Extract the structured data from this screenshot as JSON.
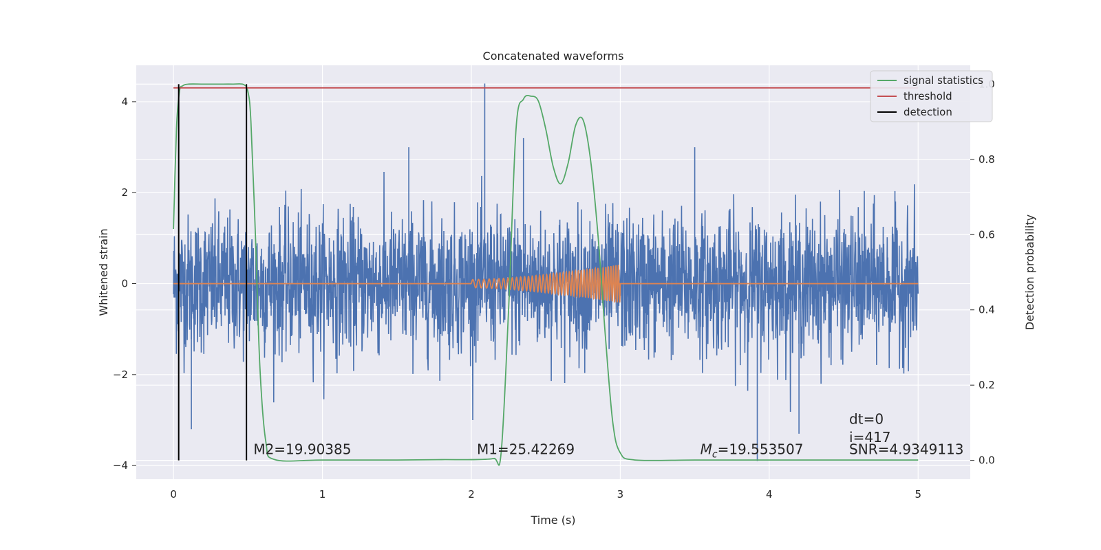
{
  "chart_data": {
    "type": "line",
    "title": "Concatenated waveforms",
    "xlabel": "Time (s)",
    "ylabel": "Whitened strain",
    "ylabel_right": "Detection probability",
    "xlim": [
      -0.25,
      5.35
    ],
    "ylim": [
      -4.3,
      4.8
    ],
    "ylim_right": [
      -0.05,
      1.05
    ],
    "xticks": [
      0,
      1,
      2,
      3,
      4,
      5
    ],
    "xtick_labels": [
      "0",
      "1",
      "2",
      "3",
      "4",
      "5"
    ],
    "yticks": [
      -4,
      -2,
      0,
      2,
      4
    ],
    "ytick_labels": [
      "−4",
      "−2",
      "0",
      "2",
      "4"
    ],
    "yticks_right": [
      0.0,
      0.2,
      0.4,
      0.6,
      0.8,
      1.0
    ],
    "ytick_right_labels": [
      "0.0",
      "0.2",
      "0.4",
      "0.6",
      "0.8",
      "1.0"
    ],
    "grid": true,
    "legend_position": "upper-right",
    "legend": [
      {
        "label": "signal statistics",
        "color": "#55a868"
      },
      {
        "label": "threshold",
        "color": "#c44e52"
      },
      {
        "label": "detection",
        "color": "#000000"
      }
    ],
    "series": [
      {
        "name": "",
        "color": "#4c72b0",
        "description_type": "whitened-noise",
        "x_range": [
          0,
          5
        ],
        "typical_std": 0.75,
        "notable_peaks": [
          [
            2.09,
            4.4
          ],
          [
            1.58,
            3.0
          ],
          [
            3.5,
            3.0
          ],
          [
            2.35,
            3.2
          ],
          [
            3.92,
            -3.9
          ],
          [
            4.2,
            -3.3
          ],
          [
            0.12,
            -3.2
          ]
        ]
      },
      {
        "name": "",
        "color": "#dd8452",
        "description_type": "chirp",
        "x_range": [
          0,
          5
        ],
        "chirp_start": 2.0,
        "chirp_end": 3.0,
        "amplitude_start": 0.09,
        "amplitude_end": 0.42
      },
      {
        "name": "signal statistics",
        "color": "#55a868",
        "axis": "right",
        "x": [
          0,
          0.02,
          0.04,
          0.06,
          0.1,
          0.2,
          0.3,
          0.4,
          0.47,
          0.5,
          0.52,
          0.55,
          0.58,
          0.62,
          0.68,
          1.0,
          1.5,
          1.8,
          2.0,
          2.15,
          2.2,
          2.25,
          2.3,
          2.35,
          2.4,
          2.45,
          2.5,
          2.55,
          2.6,
          2.65,
          2.7,
          2.75,
          2.8,
          2.85,
          2.9,
          2.95,
          3.0,
          3.1,
          3.5,
          4.0,
          4.5,
          5.0
        ],
        "y": [
          0.615,
          0.88,
          0.98,
          0.995,
          1.0,
          1.0,
          1.0,
          1.0,
          0.999,
          0.98,
          0.9,
          0.6,
          0.25,
          0.05,
          0.002,
          0.001,
          0.001,
          0.002,
          0.002,
          0.005,
          0.02,
          0.4,
          0.88,
          0.96,
          0.968,
          0.955,
          0.88,
          0.78,
          0.735,
          0.79,
          0.89,
          0.905,
          0.8,
          0.6,
          0.33,
          0.1,
          0.02,
          0.001,
          0.001,
          0.001,
          0.001,
          0.001
        ]
      },
      {
        "name": "threshold",
        "color": "#c44e52",
        "axis": "right",
        "x": [
          0,
          5
        ],
        "y": [
          0.99,
          0.99
        ]
      },
      {
        "name": "detection",
        "color": "#000000",
        "axis": "right",
        "type": "vlines",
        "x": [
          0.035,
          0.49
        ],
        "y_range": [
          0.0,
          1.0
        ]
      }
    ],
    "annotations": [
      {
        "text": "M2=19.90385",
        "x": 0.5,
        "y": -3.75
      },
      {
        "text": "M1=25.42269",
        "x": 2.0,
        "y": -3.75
      },
      {
        "text": "=19.553507",
        "math_prefix": "M",
        "math_subscript": "c",
        "x": 3.5,
        "y": -3.75
      },
      {
        "text": "SNR=4.9349113",
        "x": 4.5,
        "y": -3.75
      },
      {
        "text": "dt=0",
        "x": 4.5,
        "y": -3.08
      },
      {
        "text": "i=417",
        "x": 4.5,
        "y": -3.48
      }
    ],
    "colors": {
      "plot_bg": "#eaeaf2",
      "grid": "#ffffff",
      "text": "#262626"
    }
  }
}
